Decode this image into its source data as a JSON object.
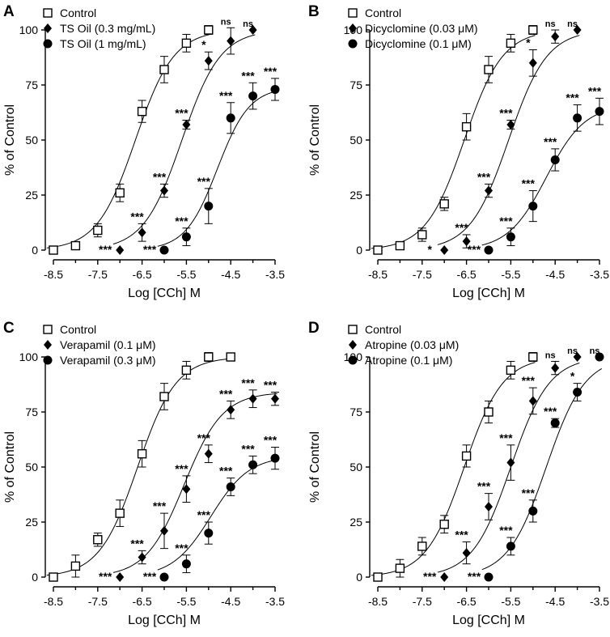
{
  "figure": {
    "panel_labels": [
      "A",
      "B",
      "C",
      "D"
    ]
  },
  "chart_data": [
    {
      "panel": "A",
      "type": "scatter",
      "xlabel": "Log [CCh] M",
      "ylabel": "% of Control",
      "xlim": [
        -8.5,
        -3.5
      ],
      "ylim": [
        0,
        100
      ],
      "xticks": [
        "-8.5",
        "-7.5",
        "-6.5",
        "-5.5",
        "-4.5",
        "-3.5"
      ],
      "yticks": [
        "0",
        "25",
        "50",
        "75",
        "100"
      ],
      "legend": "top-left",
      "series": [
        {
          "name": "Control",
          "marker": "square-open",
          "ec50": -6.65,
          "emax": 100,
          "slope": 1.0,
          "x": [
            -8.5,
            -8,
            -7.5,
            -7,
            -6.5,
            -6,
            -5.5,
            -5
          ],
          "y": [
            0,
            2,
            9,
            26,
            63,
            82,
            94,
            100
          ],
          "err": [
            0,
            1.5,
            3,
            4,
            5,
            6,
            4,
            2
          ],
          "sig": [
            "",
            "",
            "",
            "",
            "",
            "",
            "",
            ""
          ]
        },
        {
          "name": "TS Oil (0.3 mg/mL)",
          "marker": "diamond",
          "ec50": -5.6,
          "emax": 100,
          "slope": 1.0,
          "x": [
            -7,
            -6.5,
            -6,
            -5.5,
            -5,
            -4.5,
            -4
          ],
          "y": [
            0,
            8,
            27,
            57,
            86,
            95,
            100
          ],
          "err": [
            0,
            4,
            3,
            2,
            4,
            6,
            0
          ],
          "sig": [
            "***",
            "***",
            "***",
            "***",
            "*",
            "ns",
            "ns"
          ]
        },
        {
          "name": "TS Oil (1 mg/mL)",
          "marker": "circle",
          "ec50": -4.8,
          "emax": 74,
          "slope": 1.2,
          "x": [
            -6,
            -5.5,
            -5,
            -4.5,
            -4,
            -3.5
          ],
          "y": [
            0,
            6,
            20,
            60,
            70,
            73
          ],
          "err": [
            0,
            4,
            8,
            7,
            6,
            5
          ],
          "sig": [
            "***",
            "***",
            "***",
            "***",
            "***",
            "***"
          ]
        }
      ]
    },
    {
      "panel": "B",
      "type": "scatter",
      "xlabel": "Log [CCh] M",
      "ylabel": "% of Control",
      "xlim": [
        -8.5,
        -3.5
      ],
      "ylim": [
        0,
        100
      ],
      "xticks": [
        "-8.5",
        "-7.5",
        "-6.5",
        "-5.5",
        "-4.5",
        "-3.5"
      ],
      "yticks": [
        "0",
        "25",
        "50",
        "75",
        "100"
      ],
      "legend": "top-left",
      "series": [
        {
          "name": "Control",
          "marker": "square-open",
          "ec50": -6.55,
          "emax": 100,
          "slope": 1.0,
          "x": [
            -8.5,
            -8,
            -7.5,
            -7,
            -6.5,
            -6,
            -5.5,
            -5
          ],
          "y": [
            0,
            2,
            7,
            21,
            56,
            82,
            94,
            100
          ],
          "err": [
            0,
            1,
            3,
            3,
            6,
            6,
            4,
            2
          ],
          "sig": [
            "",
            "",
            "",
            "",
            "",
            "",
            "",
            ""
          ]
        },
        {
          "name": "Dicyclomine (0.03 μM)",
          "marker": "diamond",
          "ec50": -5.55,
          "emax": 100,
          "slope": 1.0,
          "x": [
            -7,
            -6.5,
            -6,
            -5.5,
            -5,
            -4.5,
            -4
          ],
          "y": [
            0,
            4,
            27,
            57,
            85,
            97,
            100
          ],
          "err": [
            0,
            3,
            3,
            2,
            6,
            3,
            0
          ],
          "sig": [
            "*",
            "***",
            "***",
            "***",
            "*",
            "ns",
            "ns"
          ]
        },
        {
          "name": "Dicyclomine (0.1 μM)",
          "marker": "circle",
          "ec50": -4.7,
          "emax": 66,
          "slope": 1.0,
          "x": [
            -6,
            -5.5,
            -5,
            -4.5,
            -4,
            -3.5
          ],
          "y": [
            0,
            6,
            20,
            41,
            60,
            63
          ],
          "err": [
            0,
            4,
            7,
            5,
            6,
            6
          ],
          "sig": [
            "***",
            "***",
            "***",
            "***",
            "***",
            "***"
          ]
        }
      ]
    },
    {
      "panel": "C",
      "type": "scatter",
      "xlabel": "Log [CCh] M",
      "ylabel": "% of Control",
      "xlim": [
        -8.5,
        -3.5
      ],
      "ylim": [
        0,
        100
      ],
      "xticks": [
        "-8.5",
        "-7.5",
        "-6.5",
        "-5.5",
        "-4.5",
        "-3.5"
      ],
      "yticks": [
        "0",
        "25",
        "50",
        "75",
        "100"
      ],
      "legend": "top-left",
      "series": [
        {
          "name": "Control",
          "marker": "square-open",
          "ec50": -6.6,
          "emax": 100,
          "slope": 1.0,
          "x": [
            -8.5,
            -8,
            -7.5,
            -7,
            -6.5,
            -6,
            -5.5,
            -5,
            -4.5
          ],
          "y": [
            0,
            5,
            17,
            29,
            56,
            82,
            94,
            100,
            100
          ],
          "err": [
            0,
            5,
            3,
            6,
            6,
            6,
            4,
            2,
            0
          ],
          "sig": [
            "",
            "",
            "",
            "",
            "",
            "",
            "",
            "",
            ""
          ]
        },
        {
          "name": "Verapamil (0.1 μM)",
          "marker": "diamond",
          "ec50": -5.55,
          "emax": 84,
          "slope": 1.0,
          "x": [
            -7,
            -6.5,
            -6,
            -5.5,
            -5,
            -4.5,
            -4,
            -3.5
          ],
          "y": [
            0,
            9,
            21,
            40,
            56,
            76,
            81,
            81
          ],
          "err": [
            0,
            3,
            8,
            6,
            4,
            4,
            4,
            3
          ],
          "sig": [
            "***",
            "***",
            "***",
            "***",
            "***",
            "***",
            "***",
            "***"
          ]
        },
        {
          "name": "Verapamil (0.3 μM)",
          "marker": "circle",
          "ec50": -4.95,
          "emax": 55,
          "slope": 1.0,
          "x": [
            -6,
            -5.5,
            -5,
            -4.5,
            -4,
            -3.5
          ],
          "y": [
            0,
            6,
            20,
            41,
            51,
            54
          ],
          "err": [
            0,
            4,
            5,
            4,
            4,
            5
          ],
          "sig": [
            "***",
            "***",
            "***",
            "***",
            "***",
            "***"
          ]
        }
      ]
    },
    {
      "panel": "D",
      "type": "scatter",
      "xlabel": "Log [CCh] M",
      "ylabel": "% of Control",
      "xlim": [
        -8.5,
        -3.5
      ],
      "ylim": [
        0,
        100
      ],
      "xticks": [
        "-8.5",
        "-7.5",
        "-6.5",
        "-5.5",
        "-4.5",
        "-3.5"
      ],
      "yticks": [
        "0",
        "25",
        "50",
        "75",
        "100"
      ],
      "legend": "top-left",
      "series": [
        {
          "name": "Control",
          "marker": "square-open",
          "ec50": -6.55,
          "emax": 100,
          "slope": 1.0,
          "x": [
            -8.5,
            -8,
            -7.5,
            -7,
            -6.5,
            -6,
            -5.5,
            -5
          ],
          "y": [
            0,
            4,
            14,
            24,
            55,
            75,
            94,
            100
          ],
          "err": [
            0,
            4,
            4,
            4,
            5,
            5,
            4,
            2
          ],
          "sig": [
            "",
            "",
            "",
            "",
            "",
            "",
            "",
            ""
          ]
        },
        {
          "name": "Atropine (0.03 μM)",
          "marker": "diamond",
          "ec50": -5.5,
          "emax": 100,
          "slope": 1.0,
          "x": [
            -7,
            -6.5,
            -6,
            -5.5,
            -5,
            -4.5,
            -4
          ],
          "y": [
            0,
            11,
            32,
            52,
            80,
            95,
            100
          ],
          "err": [
            0,
            5,
            6,
            8,
            6,
            3,
            0
          ],
          "sig": [
            "***",
            "***",
            "***",
            "***",
            "***",
            "ns",
            "ns"
          ]
        },
        {
          "name": "Atropine (0.1 μM)",
          "marker": "circle",
          "ec50": -4.7,
          "emax": 100,
          "slope": 1.0,
          "x": [
            -6,
            -5.5,
            -5,
            -4.5,
            -4,
            -3.5
          ],
          "y": [
            0,
            14,
            30,
            70,
            84,
            100
          ],
          "err": [
            0,
            4,
            5,
            2,
            4,
            0
          ],
          "sig": [
            "***",
            "***",
            "***",
            "***",
            "*",
            "ns"
          ]
        }
      ]
    }
  ]
}
